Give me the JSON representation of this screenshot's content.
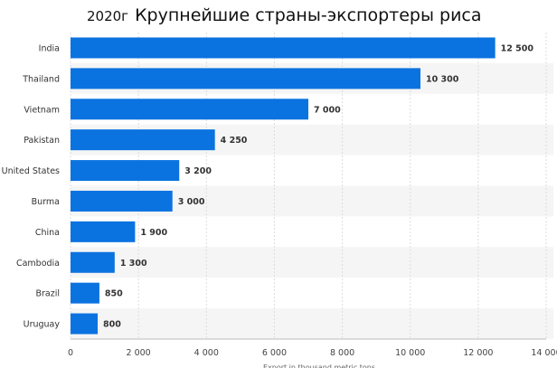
{
  "title": {
    "year": "2020г",
    "text": "Крупнейшие страны-экспортеры риса"
  },
  "chart_data": {
    "type": "bar",
    "orientation": "horizontal",
    "title": "Крупнейшие страны-экспортеры риса",
    "categories": [
      "India",
      "Thailand",
      "Vietnam",
      "Pakistan",
      "United States",
      "Burma",
      "China",
      "Cambodia",
      "Brazil",
      "Uruguay"
    ],
    "values": [
      12500,
      10300,
      7000,
      4250,
      3200,
      3000,
      1900,
      1300,
      850,
      800
    ],
    "value_labels": [
      "12 500",
      "10 300",
      "7 000",
      "4 250",
      "3 200",
      "3 000",
      "1 900",
      "1 300",
      "850",
      "800"
    ],
    "xlim": [
      0,
      14000
    ],
    "xticks": [
      0,
      2000,
      4000,
      6000,
      8000,
      10000,
      12000,
      14000
    ],
    "xtick_labels": [
      "0",
      "2 000",
      "4 000",
      "6 000",
      "8 000",
      "10 000",
      "12 000",
      "14 000"
    ],
    "xlabel": "Export in thousand metric tons",
    "ylabel": "",
    "grid": true,
    "bar_color": "#0b73e0",
    "band_color": "#f5f5f5"
  }
}
